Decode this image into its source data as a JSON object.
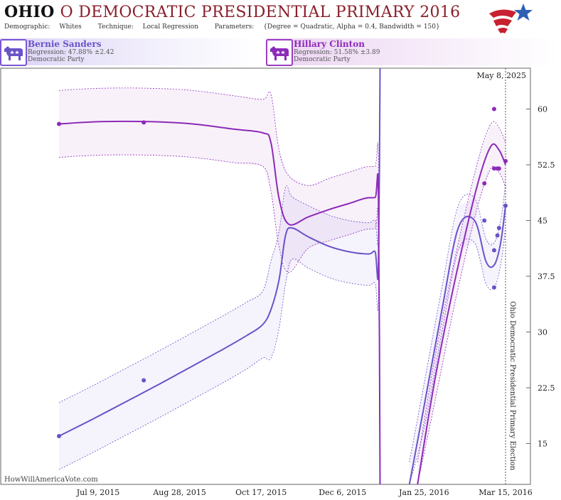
{
  "header": {
    "state": "OHIO",
    "title_rest": "O DEMOCRATIC PRESIDENTIAL PRIMARY 2016",
    "demographic_label": "Demographic:",
    "demographic_value": "Whites",
    "technique_label": "Technique:",
    "technique_value": "Local Regression",
    "parameters_label": "Parameters:",
    "parameters_value": "{Degree = Quadratic, Alpha = 0.4, Bandwidth = 150}"
  },
  "candidates": [
    {
      "name": "Bernie Sanders",
      "regression": "Regression: 47.88% ±2.42",
      "party": "Democratic Party",
      "color": "#6a52c8"
    },
    {
      "name": "Hillary Clinton",
      "regression": "Regression: 51.58% ±3.89",
      "party": "Democratic Party",
      "color": "#8d2ab8"
    }
  ],
  "watermark": "HowWillAmericaVote.com",
  "chart_data": {
    "type": "line",
    "x_ticks": [
      "Jul 9, 2015",
      "Aug 28, 2015",
      "Oct 17, 2015",
      "Dec 6, 2015",
      "Jan 25, 2016",
      "Mar 15, 2016"
    ],
    "y_ticks": [
      "15",
      "22.5",
      "30",
      "37.5",
      "45",
      "52.5",
      "60"
    ],
    "ylim": [
      9.5,
      65.5
    ],
    "current_date_label": "May 8, 2025",
    "election_label": "Ohio Democratic Presidential Primary Election",
    "series": [
      {
        "name": "Bernie Sanders",
        "color": "#6a52c8",
        "line": [
          [
            "2015-06-15",
            16
          ],
          [
            "2015-07-05",
            18.2
          ],
          [
            "2015-07-25",
            20.5
          ],
          [
            "2015-08-14",
            22.8
          ],
          [
            "2015-09-03",
            25.2
          ],
          [
            "2015-09-23",
            27.6
          ],
          [
            "2015-10-08",
            29.5
          ],
          [
            "2015-10-18",
            31.0
          ],
          [
            "2015-10-23",
            33.0
          ],
          [
            "2015-10-28",
            37.0
          ],
          [
            "2015-11-01",
            43.0
          ],
          [
            "2015-11-05",
            44.0
          ],
          [
            "2015-11-15",
            42.8
          ],
          [
            "2015-11-28",
            41.5
          ],
          [
            "2015-12-10",
            40.8
          ],
          [
            "2015-12-22",
            40.5
          ],
          [
            "2015-12-26",
            40.8
          ],
          [
            "2015-12-28",
            38.5
          ],
          [
            "2015-12-29",
            66.0
          ]
        ],
        "line2": [
          [
            "2016-01-16",
            9.5
          ],
          [
            "2016-01-25",
            20.0
          ],
          [
            "2016-02-05",
            33.0
          ],
          [
            "2016-02-15",
            44.0
          ],
          [
            "2016-02-25",
            45.0
          ],
          [
            "2016-03-03",
            39.5
          ],
          [
            "2016-03-08",
            39.0
          ],
          [
            "2016-03-12",
            42.0
          ],
          [
            "2016-03-15",
            47.0
          ]
        ],
        "points": [
          [
            "2015-06-15",
            16
          ],
          [
            "2015-08-06",
            23.5
          ],
          [
            "2016-03-02",
            45
          ],
          [
            "2016-03-08",
            36
          ],
          [
            "2016-03-08",
            41
          ],
          [
            "2016-03-10",
            43
          ],
          [
            "2016-03-11",
            44
          ],
          [
            "2016-03-15",
            47
          ]
        ]
      },
      {
        "name": "Hillary Clinton",
        "color": "#8d2ab8",
        "line": [
          [
            "2015-06-15",
            58
          ],
          [
            "2015-07-10",
            58.3
          ],
          [
            "2015-08-10",
            58.3
          ],
          [
            "2015-09-05",
            58.0
          ],
          [
            "2015-09-30",
            57.3
          ],
          [
            "2015-10-18",
            56.8
          ],
          [
            "2015-10-23",
            55.5
          ],
          [
            "2015-10-28",
            48.0
          ],
          [
            "2015-11-03",
            44.5
          ],
          [
            "2015-11-15",
            45.5
          ],
          [
            "2015-11-28",
            46.5
          ],
          [
            "2015-12-10",
            47.3
          ],
          [
            "2015-12-20",
            48.0
          ],
          [
            "2015-12-26",
            48.1
          ],
          [
            "2015-12-28",
            48.5
          ],
          [
            "2015-12-29",
            9.5
          ]
        ],
        "line2": [
          [
            "2016-01-21",
            9.5
          ],
          [
            "2016-02-01",
            24.0
          ],
          [
            "2016-02-14",
            38.0
          ],
          [
            "2016-02-27",
            50.0
          ],
          [
            "2016-03-06",
            55.0
          ],
          [
            "2016-03-11",
            54.5
          ],
          [
            "2016-03-15",
            52.5
          ]
        ],
        "points": [
          [
            "2015-06-15",
            58
          ],
          [
            "2015-08-06",
            58.2
          ],
          [
            "2016-03-02",
            50
          ],
          [
            "2016-03-08",
            60
          ],
          [
            "2016-03-08",
            52
          ],
          [
            "2016-03-10",
            52
          ],
          [
            "2016-03-11",
            52
          ],
          [
            "2016-03-15",
            53
          ]
        ]
      }
    ]
  }
}
